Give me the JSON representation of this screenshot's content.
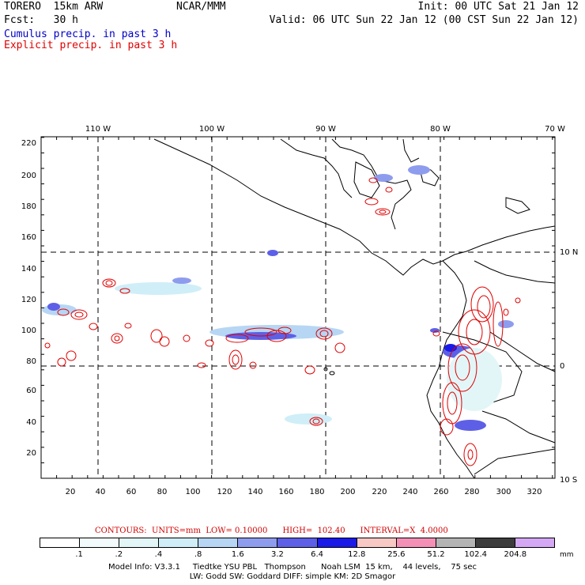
{
  "header": {
    "model": "TORERO  15km ARW",
    "org": "NCAR/MMM",
    "init": "Init: 00 UTC Sat 21 Jan 12",
    "fcst": "Fcst:   30 h",
    "valid": "Valid: 06 UTC Sun 22 Jan 12 (00 CST Sun 22 Jan 12)",
    "cumulus_label": "Cumulus precip. in past 3 h",
    "explicit_label": "Explicit precip. in past 3 h"
  },
  "colors": {
    "cumulus": "#0000c8",
    "explicit": "#e00000",
    "land": "#000000"
  },
  "map": {
    "lon_labels": [
      "110 W",
      "100 W",
      "90 W",
      "80 W",
      "70 W"
    ],
    "lat_labels": [
      "10 N",
      "0",
      "10 S"
    ],
    "y_ticks": [
      "220",
      "200",
      "180",
      "160",
      "140",
      "120",
      "100",
      "80",
      "60",
      "40",
      "20"
    ],
    "x_ticks": [
      "20",
      "40",
      "60",
      "80",
      "100",
      "120",
      "140",
      "160",
      "180",
      "200",
      "220",
      "240",
      "260",
      "280",
      "300",
      "320"
    ]
  },
  "contour_note": "CONTOURS:  UNITS=mm  LOW= 0.10000      HIGH=  102.40      INTERVAL=X  4.0000",
  "colorbar": {
    "colors": [
      "#ffffff",
      "#f2fbfb",
      "#e2f6f8",
      "#cfeef8",
      "#b6d6f4",
      "#8e9cee",
      "#5d60e6",
      "#1a1ae8",
      "#f8c8c4",
      "#f490b6",
      "#b4b4b4",
      "#3c3c3c",
      "#d4a8f4"
    ],
    "labels": [
      ".1",
      ".2",
      ".4",
      ".8",
      "1.6",
      "3.2",
      "6.4",
      "12.8",
      "25.6",
      "51.2",
      "102.4",
      "204.8"
    ],
    "unit": "mm"
  },
  "model_info": {
    "line1": "Model Info: V3.3.1     Tiedtke YSU PBL   Thompson      Noah LSM  15 km,    44 levels,    75 sec",
    "line2": "LW: Godd SW: Goddard DIFF: simple KM: 2D Smagor"
  }
}
